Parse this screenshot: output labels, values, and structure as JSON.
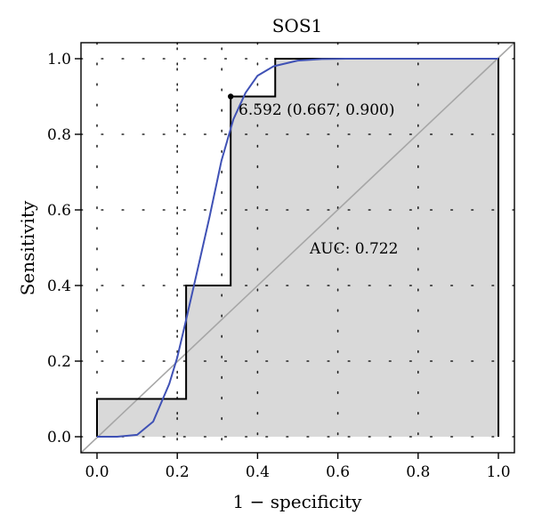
{
  "chart_data": {
    "type": "line",
    "title": "SOS1",
    "xlabel": "1 − specificity",
    "ylabel": "Sensitivity",
    "xlim": [
      0,
      1
    ],
    "ylim": [
      0,
      1
    ],
    "xticks": [
      "0.0",
      "0.2",
      "0.4",
      "0.6",
      "0.8",
      "1.0"
    ],
    "yticks": [
      "0.0",
      "0.2",
      "0.4",
      "0.6",
      "0.8",
      "1.0"
    ],
    "grid": "dotted",
    "series": [
      {
        "kind": "empirical-roc-step",
        "color": "#000000",
        "fill": "#d9d9d9",
        "x": [
          0,
          0,
          0.222,
          0.222,
          0.333,
          0.333,
          0.444,
          0.444,
          1.0,
          1.0
        ],
        "y": [
          0,
          0.1,
          0.1,
          0.4,
          0.4,
          0.9,
          0.9,
          1.0,
          1.0,
          0
        ]
      },
      {
        "kind": "smoothed-roc",
        "color": "#3f51b5",
        "x": [
          0,
          0.05,
          0.1,
          0.14,
          0.18,
          0.2,
          0.22,
          0.25,
          0.28,
          0.31,
          0.34,
          0.37,
          0.4,
          0.44,
          0.5,
          0.56,
          0.62,
          0.7,
          0.8,
          1.0
        ],
        "y": [
          0,
          0.0,
          0.005,
          0.04,
          0.14,
          0.21,
          0.3,
          0.44,
          0.58,
          0.73,
          0.84,
          0.91,
          0.955,
          0.98,
          0.995,
          0.999,
          1.0,
          1.0,
          1.0,
          1.0
        ]
      },
      {
        "kind": "diagonal",
        "color": "#a6a6a6",
        "x": [
          0,
          1
        ],
        "y": [
          0,
          1
        ]
      }
    ],
    "best_point": {
      "x": 0.333,
      "y": 0.9,
      "label": "6.592 (0.667, 0.900)"
    },
    "auc_label": "AUC: 0.722"
  }
}
